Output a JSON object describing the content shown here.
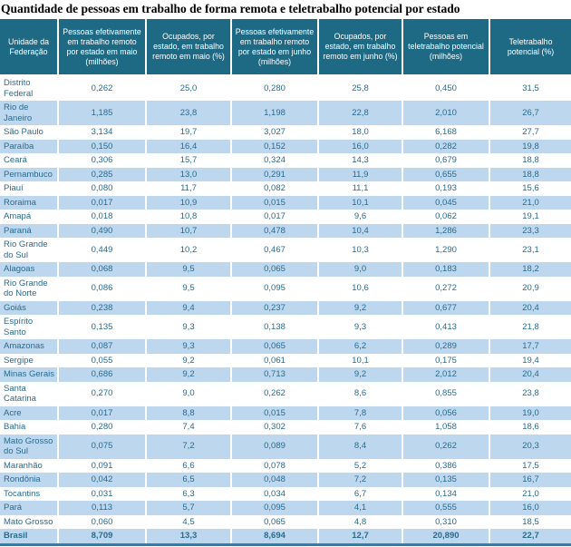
{
  "title": "Quantidade de pessoas em trabalho de forma remota e teletrabalho potencial por estado",
  "colors": {
    "header_bg": "#1e6a85",
    "stripe": "#bdd7ee",
    "text": "#2b6b8d",
    "header_text": "#ffffff",
    "bottom_border": "#2e7fae",
    "title_color": "#000000"
  },
  "chart_data": {
    "type": "table",
    "title": "Quantidade de pessoas em trabalho de forma remota e teletrabalho potencial por estado",
    "columns": [
      "Unidade da Federação",
      "Pessoas efetivamente em trabalho remoto por estado em maio (milhões)",
      "Ocupados, por estado, em trabalho remoto em maio (%)",
      "Pessoas efetivamente em trabalho remoto por estado em junho (milhões)",
      "Ocupados, por estado, em trabalho remoto em junho (%)",
      "Pessoas em teletrabalho potencial (milhões)",
      "Teletrabalho potencial (%)"
    ],
    "rows": [
      {
        "name": "Distrito Federal",
        "values": [
          "0,262",
          "25,0",
          "0,280",
          "25,8",
          "0,450",
          "31,5"
        ]
      },
      {
        "name": "Rio de Janeiro",
        "values": [
          "1,185",
          "23,8",
          "1,198",
          "22,8",
          "2,010",
          "26,7"
        ]
      },
      {
        "name": "São Paulo",
        "values": [
          "3,134",
          "19,7",
          "3,027",
          "18,0",
          "6,168",
          "27,7"
        ]
      },
      {
        "name": "Paraíba",
        "values": [
          "0,150",
          "16,4",
          "0,152",
          "16,0",
          "0,282",
          "19,8"
        ]
      },
      {
        "name": "Ceará",
        "values": [
          "0,306",
          "15,7",
          "0,324",
          "14,3",
          "0,679",
          "18,8"
        ]
      },
      {
        "name": "Pernambuco",
        "values": [
          "0,285",
          "13,0",
          "0,291",
          "11,9",
          "0,655",
          "18,8"
        ]
      },
      {
        "name": "Piauí",
        "values": [
          "0,080",
          "11,7",
          "0,082",
          "11,1",
          "0,193",
          "15,6"
        ]
      },
      {
        "name": "Roraima",
        "values": [
          "0,017",
          "10,9",
          "0,015",
          "10,1",
          "0,045",
          "21,0"
        ]
      },
      {
        "name": "Amapá",
        "values": [
          "0,018",
          "10,8",
          "0,017",
          "9,6",
          "0,062",
          "19,1"
        ]
      },
      {
        "name": "Paraná",
        "values": [
          "0,490",
          "10,7",
          "0,478",
          "10,4",
          "1,286",
          "23,3"
        ]
      },
      {
        "name": "Rio Grande do Sul",
        "values": [
          "0,449",
          "10,2",
          "0,467",
          "10,3",
          "1,290",
          "23,1"
        ]
      },
      {
        "name": "Alagoas",
        "values": [
          "0,068",
          "9,5",
          "0,065",
          "9,0",
          "0,183",
          "18,2"
        ]
      },
      {
        "name": "Rio Grande do Norte",
        "values": [
          "0,086",
          "9,5",
          "0,095",
          "10,6",
          "0,272",
          "20,9"
        ]
      },
      {
        "name": "Goiás",
        "values": [
          "0,238",
          "9,4",
          "0,237",
          "9,2",
          "0,677",
          "20,4"
        ]
      },
      {
        "name": "Espírito Santo",
        "values": [
          "0,135",
          "9,3",
          "0,138",
          "9,3",
          "0,413",
          "21,8"
        ]
      },
      {
        "name": "Amazonas",
        "values": [
          "0,087",
          "9,3",
          "0,065",
          "6,2",
          "0,289",
          "17,7"
        ]
      },
      {
        "name": "Sergipe",
        "values": [
          "0,055",
          "9,2",
          "0,061",
          "10,1",
          "0,175",
          "19,4"
        ]
      },
      {
        "name": "Minas Gerais",
        "values": [
          "0,686",
          "9,2",
          "0,713",
          "9,2",
          "2,012",
          "20,4"
        ]
      },
      {
        "name": "Santa Catarina",
        "values": [
          "0,270",
          "9,0",
          "0,262",
          "8,6",
          "0,855",
          "23,8"
        ]
      },
      {
        "name": "Acre",
        "values": [
          "0,017",
          "8,8",
          "0,015",
          "7,8",
          "0,056",
          "19,0"
        ]
      },
      {
        "name": "Bahia",
        "values": [
          "0,280",
          "7,4",
          "0,302",
          "7,6",
          "1,058",
          "18,6"
        ]
      },
      {
        "name": "Mato Grosso do Sul",
        "values": [
          "0,075",
          "7,2",
          "0,089",
          "8,4",
          "0,262",
          "20,3"
        ]
      },
      {
        "name": "Maranhão",
        "values": [
          "0,091",
          "6,6",
          "0,078",
          "5,2",
          "0,386",
          "17,5"
        ]
      },
      {
        "name": "Rondônia",
        "values": [
          "0,042",
          "6,5",
          "0,048",
          "7,2",
          "0,135",
          "16,7"
        ]
      },
      {
        "name": "Tocantins",
        "values": [
          "0,031",
          "6,3",
          "0,034",
          "6,7",
          "0,134",
          "21,0"
        ]
      },
      {
        "name": "Pará",
        "values": [
          "0,113",
          "5,7",
          "0,095",
          "4,1",
          "0,555",
          "16,0"
        ]
      },
      {
        "name": "Mato Grosso",
        "values": [
          "0,060",
          "4,5",
          "0,065",
          "4,8",
          "0,310",
          "18,5"
        ]
      },
      {
        "name": "Brasil",
        "values": [
          "8,709",
          "13,3",
          "8,694",
          "12,7",
          "20,890",
          "22,7"
        ],
        "is_total": true
      }
    ]
  }
}
